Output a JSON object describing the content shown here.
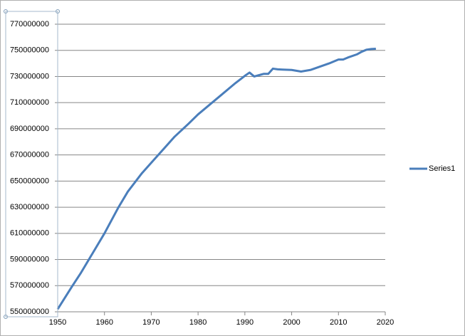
{
  "chart_data": {
    "type": "line",
    "x": [
      1950,
      1953,
      1955,
      1958,
      1960,
      1963,
      1965,
      1968,
      1970,
      1973,
      1975,
      1978,
      1980,
      1983,
      1985,
      1988,
      1990,
      1991,
      1992,
      1993,
      1994,
      1995,
      1996,
      1997,
      1998,
      2000,
      2002,
      2004,
      2006,
      2008,
      2010,
      2011,
      2012,
      2014,
      2015,
      2016,
      2017,
      2018
    ],
    "series": [
      {
        "name": "Series1",
        "color": "#4a7ebb",
        "values": [
          552000000,
          569000000,
          580000000,
          598000000,
          610000000,
          630000000,
          642000000,
          656000000,
          664000000,
          676000000,
          684000000,
          694000000,
          701000000,
          710000000,
          716000000,
          725000000,
          730500000,
          733000000,
          730000000,
          731000000,
          732000000,
          732000000,
          736000000,
          735500000,
          735300000,
          735000000,
          733800000,
          735000000,
          737500000,
          740000000,
          743000000,
          743000000,
          744500000,
          747000000,
          749000000,
          750500000,
          751000000,
          751200000
        ]
      }
    ],
    "xlim": [
      1950,
      2020
    ],
    "xticks": [
      1950,
      1960,
      1970,
      1980,
      1990,
      2000,
      2010,
      2020
    ],
    "ylim": [
      550000000,
      770000000
    ],
    "yticks": [
      550000000,
      570000000,
      590000000,
      610000000,
      630000000,
      650000000,
      670000000,
      690000000,
      710000000,
      730000000,
      750000000,
      770000000
    ],
    "grid": true,
    "legend": "right"
  }
}
